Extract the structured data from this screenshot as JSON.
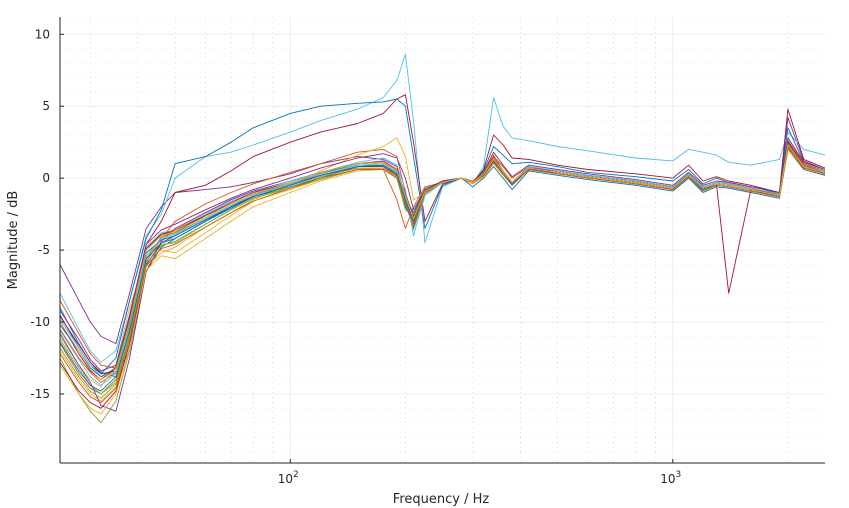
{
  "chart_data": {
    "type": "line",
    "title": "",
    "xlabel": "Frequency / Hz",
    "ylabel": "Magnitude / dB",
    "xscale": "log",
    "xlim": [
      25,
      2500
    ],
    "ylim": [
      -19.8,
      11.2
    ],
    "grid": true,
    "minor_grid": true,
    "legend": "none",
    "xticks": [
      {
        "value": 100,
        "base": "10",
        "exp": "2"
      },
      {
        "value": 1000,
        "base": "10",
        "exp": "3"
      }
    ],
    "yticks": [
      {
        "value": 10,
        "label": "10"
      },
      {
        "value": 5,
        "label": "5"
      },
      {
        "value": 0,
        "label": "0"
      },
      {
        "value": -5,
        "label": "-5"
      },
      {
        "value": -10,
        "label": "-10"
      },
      {
        "value": -15,
        "label": "-15"
      }
    ],
    "x": [
      25,
      28,
      30,
      32,
      35,
      38,
      42,
      46,
      50,
      60,
      70,
      80,
      100,
      120,
      150,
      175,
      190,
      200,
      210,
      225,
      250,
      280,
      300,
      320,
      340,
      360,
      380,
      420,
      500,
      600,
      800,
      1000,
      1100,
      1200,
      1300,
      1400,
      1600,
      1900,
      2000,
      2200,
      2500
    ],
    "series": [
      {
        "color": "#0072BD",
        "values": [
          -9.0,
          -11.5,
          -12.8,
          -13.5,
          -13.8,
          -12.0,
          -6.5,
          -4.8,
          -4.2,
          -3.0,
          -2.0,
          -1.3,
          -0.6,
          0.0,
          0.8,
          0.9,
          0.3,
          -2.0,
          -3.0,
          -0.8,
          -0.2,
          0.0,
          -0.3,
          0.2,
          1.2,
          0.3,
          -0.5,
          0.7,
          0.5,
          0.2,
          -0.2,
          -0.6,
          0.2,
          -0.8,
          -0.4,
          -0.5,
          -0.8,
          -1.0,
          2.5,
          1.0,
          0.5
        ]
      },
      {
        "color": "#D95319",
        "values": [
          -10.5,
          -12.5,
          -13.5,
          -14.2,
          -13.5,
          -10.0,
          -5.0,
          -4.0,
          -3.8,
          -2.6,
          -1.8,
          -1.1,
          -0.4,
          0.2,
          0.7,
          0.6,
          -1.5,
          -3.5,
          -2.0,
          -0.6,
          -0.3,
          0.0,
          -0.2,
          0.4,
          1.6,
          0.5,
          -0.3,
          0.8,
          0.4,
          0.1,
          -0.3,
          -0.7,
          0.3,
          -0.6,
          -0.3,
          -0.4,
          -0.7,
          -1.2,
          2.2,
          0.8,
          0.3
        ]
      },
      {
        "color": "#EDB120",
        "values": [
          -11.0,
          -13.0,
          -14.0,
          -14.5,
          -13.0,
          -9.0,
          -5.5,
          -5.0,
          -5.2,
          -3.8,
          -2.6,
          -1.6,
          -0.8,
          -0.1,
          0.6,
          0.7,
          0.2,
          -1.8,
          -3.2,
          -0.9,
          -0.3,
          0.0,
          -0.4,
          0.1,
          1.0,
          0.2,
          -0.4,
          0.6,
          0.3,
          0.0,
          -0.4,
          -0.8,
          0.1,
          -0.9,
          -0.5,
          -0.6,
          -0.9,
          -1.3,
          2.0,
          0.6,
          0.2
        ]
      },
      {
        "color": "#7E2F8E",
        "values": [
          -6.0,
          -8.5,
          -10.0,
          -11.0,
          -11.5,
          -8.0,
          -3.5,
          -2.0,
          -1.0,
          -0.8,
          -0.6,
          -0.3,
          0.3,
          1.0,
          1.5,
          1.3,
          0.8,
          -1.5,
          -3.0,
          -0.9,
          -0.2,
          0.0,
          -0.3,
          0.3,
          1.3,
          0.4,
          -0.4,
          0.7,
          0.5,
          0.2,
          -0.2,
          -0.6,
          0.3,
          -0.7,
          -0.4,
          -0.5,
          -0.8,
          -1.1,
          4.2,
          1.2,
          0.6
        ]
      },
      {
        "color": "#77AC30",
        "values": [
          -12.5,
          -15.0,
          -16.2,
          -17.0,
          -15.5,
          -12.0,
          -6.0,
          -4.6,
          -4.5,
          -3.2,
          -2.2,
          -1.4,
          -0.7,
          -0.1,
          0.6,
          0.6,
          0.0,
          -2.2,
          -2.6,
          -0.7,
          -0.3,
          0.0,
          -0.3,
          0.2,
          1.1,
          0.3,
          -0.5,
          0.6,
          0.4,
          0.1,
          -0.3,
          -0.7,
          0.2,
          -0.8,
          -0.4,
          -0.5,
          -0.8,
          -1.2,
          2.4,
          0.9,
          0.4
        ]
      },
      {
        "color": "#4DBEEE",
        "values": [
          -8.0,
          -10.5,
          -12.0,
          -12.8,
          -12.0,
          -8.5,
          -4.0,
          -2.5,
          0.0,
          1.5,
          1.8,
          2.3,
          3.2,
          4.0,
          4.8,
          5.6,
          6.8,
          8.6,
          4.0,
          -4.5,
          -0.6,
          0.0,
          -0.4,
          0.8,
          5.6,
          3.6,
          2.8,
          2.6,
          2.2,
          1.9,
          1.4,
          1.2,
          2.0,
          1.8,
          1.6,
          1.1,
          0.9,
          1.3,
          3.2,
          2.0,
          1.6
        ]
      },
      {
        "color": "#A2142F",
        "values": [
          -10.0,
          -12.2,
          -13.4,
          -14.0,
          -13.2,
          -9.5,
          -4.6,
          -3.0,
          -1.0,
          -0.5,
          0.5,
          1.5,
          2.5,
          3.2,
          3.8,
          4.5,
          5.5,
          5.8,
          2.5,
          -3.0,
          -0.4,
          0.0,
          -0.3,
          0.6,
          3.0,
          2.3,
          1.4,
          1.3,
          0.9,
          0.6,
          0.3,
          0.0,
          0.9,
          -0.2,
          0.1,
          -0.2,
          -0.5,
          -1.0,
          4.8,
          1.3,
          0.7
        ]
      },
      {
        "color": "#0072BD",
        "values": [
          -9.5,
          -11.8,
          -13.0,
          -13.6,
          -12.5,
          -8.5,
          -4.2,
          -2.2,
          1.0,
          1.5,
          2.5,
          3.5,
          4.5,
          5.0,
          5.2,
          5.3,
          5.5,
          5.0,
          1.5,
          -3.5,
          -0.5,
          0.0,
          -0.4,
          0.5,
          2.2,
          1.6,
          1.0,
          1.1,
          0.8,
          0.4,
          0.1,
          -0.2,
          0.6,
          -0.4,
          0.0,
          -0.3,
          -0.6,
          -1.0,
          3.5,
          1.1,
          0.6
        ]
      },
      {
        "color": "#D95319",
        "values": [
          -11.5,
          -13.6,
          -14.6,
          -15.0,
          -14.0,
          -10.5,
          -5.8,
          -4.2,
          -3.0,
          -1.8,
          -1.0,
          -0.4,
          0.4,
          1.0,
          1.8,
          2.0,
          1.5,
          -1.0,
          -2.8,
          -0.8,
          -0.2,
          0.0,
          -0.3,
          0.3,
          1.5,
          0.8,
          0.0,
          0.8,
          0.5,
          0.2,
          -0.2,
          -0.6,
          0.3,
          -0.6,
          -0.3,
          -0.4,
          -0.7,
          -1.1,
          2.8,
          1.0,
          0.5
        ]
      },
      {
        "color": "#EDB120",
        "values": [
          -12.0,
          -14.0,
          -15.0,
          -15.5,
          -14.5,
          -11.0,
          -6.2,
          -5.2,
          -4.8,
          -3.4,
          -2.4,
          -1.5,
          -0.5,
          0.5,
          1.6,
          2.2,
          2.8,
          1.5,
          -1.5,
          -1.0,
          -0.3,
          0.0,
          -0.4,
          0.1,
          1.2,
          0.4,
          -0.3,
          0.7,
          0.3,
          0.0,
          -0.4,
          -0.8,
          0.1,
          -0.8,
          -0.5,
          -0.6,
          -0.9,
          -1.2,
          2.1,
          0.7,
          0.3
        ]
      },
      {
        "color": "#7E2F8E",
        "values": [
          -10.8,
          -13.0,
          -14.2,
          -15.8,
          -16.2,
          -12.5,
          -6.5,
          -4.4,
          -3.5,
          -2.4,
          -1.5,
          -0.9,
          -0.2,
          0.4,
          1.0,
          1.2,
          0.6,
          -1.8,
          -3.4,
          -1.0,
          -0.3,
          0.0,
          -0.3,
          0.2,
          1.4,
          0.5,
          -0.4,
          0.7,
          0.4,
          0.1,
          -0.3,
          -0.7,
          0.2,
          -0.7,
          -0.4,
          -0.5,
          -0.8,
          -1.2,
          2.3,
          0.8,
          0.4
        ]
      },
      {
        "color": "#77AC30",
        "values": [
          -11.2,
          -13.2,
          -14.4,
          -15.0,
          -14.2,
          -10.8,
          -5.6,
          -4.1,
          -3.8,
          -2.8,
          -1.9,
          -1.2,
          -0.4,
          0.3,
          0.9,
          0.9,
          0.4,
          -1.2,
          -3.6,
          -1.1,
          -0.3,
          0.0,
          -0.3,
          0.3,
          1.3,
          0.4,
          -0.4,
          0.7,
          0.4,
          0.1,
          -0.3,
          -0.7,
          0.2,
          -0.7,
          -0.4,
          -0.5,
          -0.8,
          -1.2,
          2.2,
          0.8,
          0.4
        ]
      },
      {
        "color": "#4DBEEE",
        "values": [
          -9.8,
          -11.8,
          -13.0,
          -13.8,
          -13.5,
          -10.0,
          -4.8,
          -3.8,
          -3.6,
          -2.5,
          -1.6,
          -1.0,
          -0.2,
          0.4,
          1.1,
          1.4,
          0.9,
          -0.8,
          -4.0,
          -1.2,
          -0.3,
          0.0,
          -0.3,
          0.3,
          1.4,
          0.5,
          -0.3,
          0.8,
          0.5,
          0.2,
          -0.2,
          -0.6,
          0.3,
          -0.6,
          -0.3,
          -0.4,
          -0.7,
          -1.1,
          2.4,
          0.9,
          0.5
        ]
      },
      {
        "color": "#A2142F",
        "values": [
          -12.8,
          -14.8,
          -15.6,
          -16.0,
          -14.8,
          -11.5,
          -6.0,
          -4.5,
          -4.0,
          -2.9,
          -2.0,
          -1.3,
          -0.5,
          0.2,
          0.8,
          0.8,
          0.2,
          -1.6,
          -3.0,
          -0.9,
          -0.3,
          0.0,
          -0.3,
          0.2,
          1.2,
          0.4,
          -0.4,
          0.6,
          0.4,
          0.1,
          -0.3,
          -0.7,
          0.2,
          -0.8,
          -0.4,
          -0.5,
          -0.8,
          -1.3,
          2.6,
          0.9,
          0.4
        ]
      },
      {
        "color": "#0072BD",
        "values": [
          -10.2,
          -12.0,
          -13.2,
          -13.8,
          -13.2,
          -9.8,
          -5.2,
          -4.3,
          -4.0,
          -2.9,
          -2.0,
          -1.2,
          -0.4,
          0.3,
          1.0,
          1.1,
          0.5,
          -1.4,
          -2.4,
          -0.8,
          -0.3,
          0.0,
          -0.6,
          0.0,
          0.8,
          0.0,
          -0.8,
          0.5,
          0.2,
          -0.1,
          -0.5,
          -0.9,
          0.0,
          -1.0,
          -0.6,
          -0.7,
          -1.0,
          -1.4,
          2.0,
          0.6,
          0.2
        ]
      },
      {
        "color": "#D95319",
        "values": [
          -8.5,
          -10.8,
          -12.2,
          -13.0,
          -13.2,
          -10.2,
          -5.0,
          -3.9,
          -3.6,
          -2.6,
          -1.8,
          -1.1,
          -0.3,
          0.4,
          1.0,
          1.1,
          0.6,
          -1.2,
          -2.6,
          -0.9,
          -0.3,
          0.0,
          -0.3,
          0.3,
          1.4,
          0.5,
          -0.3,
          0.7,
          0.4,
          0.1,
          -0.3,
          -0.7,
          0.2,
          -0.7,
          -0.4,
          -0.5,
          -0.8,
          -1.2,
          2.4,
          0.9,
          0.4
        ]
      },
      {
        "color": "#EDB120",
        "values": [
          -13.0,
          -15.0,
          -16.0,
          -16.4,
          -15.0,
          -11.8,
          -6.4,
          -5.4,
          -5.6,
          -4.2,
          -3.0,
          -2.0,
          -1.0,
          -0.2,
          0.5,
          0.6,
          0.1,
          -1.5,
          -2.8,
          -0.9,
          -0.3,
          0.0,
          -0.4,
          0.1,
          1.0,
          0.2,
          -0.5,
          0.6,
          0.3,
          0.0,
          -0.4,
          -0.8,
          0.1,
          -0.9,
          -0.5,
          -0.6,
          -0.9,
          -1.3,
          2.0,
          0.7,
          0.3
        ]
      },
      {
        "color": "#7E2F8E",
        "values": [
          -9.2,
          -11.2,
          -12.6,
          -13.4,
          -13.0,
          -9.6,
          -4.6,
          -3.6,
          -3.2,
          -2.2,
          -1.4,
          -0.8,
          0.0,
          0.7,
          1.4,
          1.7,
          1.4,
          0.0,
          -2.2,
          -0.8,
          -0.2,
          0.0,
          -0.3,
          0.4,
          1.8,
          0.9,
          0.1,
          0.9,
          0.6,
          0.3,
          -0.1,
          -0.5,
          0.4,
          -0.5,
          -0.2,
          -0.3,
          -0.6,
          -1.0,
          2.8,
          1.1,
          0.6
        ]
      },
      {
        "color": "#77AC30",
        "values": [
          -11.8,
          -13.8,
          -14.8,
          -15.3,
          -14.3,
          -11.0,
          -5.9,
          -4.7,
          -4.4,
          -3.2,
          -2.2,
          -1.4,
          -0.6,
          0.1,
          0.7,
          0.7,
          0.1,
          -1.7,
          -3.1,
          -1.0,
          -0.3,
          0.0,
          -0.3,
          0.2,
          1.1,
          0.3,
          -0.5,
          0.6,
          0.3,
          0.0,
          -0.4,
          -0.8,
          0.1,
          -0.8,
          -0.5,
          -0.6,
          -0.9,
          -1.3,
          2.1,
          0.7,
          0.3
        ]
      },
      {
        "color": "#4DBEEE",
        "values": [
          -10.6,
          -12.6,
          -13.8,
          -14.4,
          -13.6,
          -10.4,
          -5.4,
          -4.2,
          -3.9,
          -2.8,
          -1.9,
          -1.2,
          -0.4,
          0.3,
          0.9,
          1.0,
          0.4,
          -1.3,
          -2.9,
          -0.9,
          -0.3,
          0.0,
          -0.3,
          0.3,
          1.3,
          0.4,
          -0.4,
          0.7,
          0.4,
          0.1,
          -0.3,
          -0.7,
          0.2,
          -0.7,
          -0.4,
          -0.5,
          -0.8,
          -1.2,
          2.3,
          0.8,
          0.4
        ]
      },
      {
        "color": "#A2142F",
        "values": [
          -9.6,
          -11.6,
          -12.8,
          -13.6,
          -13.4,
          -10.0,
          -4.9,
          -3.9,
          -3.7,
          -2.6,
          -1.7,
          -1.0,
          -0.3,
          0.4,
          1.0,
          1.1,
          0.5,
          -1.1,
          -2.7,
          -0.9,
          -0.3,
          0.0,
          -0.3,
          0.3,
          1.3,
          0.5,
          -0.3,
          0.7,
          0.4,
          0.1,
          -0.3,
          -0.7,
          0.2,
          -0.7,
          -0.4,
          -8.0,
          -0.8,
          -1.2,
          2.3,
          0.8,
          0.4
        ]
      },
      {
        "color": "#0072BD",
        "values": [
          -11.4,
          -13.4,
          -14.4,
          -14.8,
          -13.8,
          -10.6,
          -5.6,
          -4.5,
          -4.2,
          -3.0,
          -2.1,
          -1.3,
          -0.5,
          0.2,
          0.8,
          0.9,
          0.3,
          -1.5,
          -3.0,
          -0.9,
          -0.3,
          0.0,
          -0.3,
          0.2,
          1.2,
          0.3,
          -0.4,
          0.6,
          0.4,
          0.1,
          -0.3,
          -0.7,
          0.2,
          -0.8,
          -0.4,
          -0.5,
          -0.8,
          -1.2,
          2.2,
          0.8,
          0.4
        ]
      },
      {
        "color": "#D95319",
        "values": [
          -12.2,
          -14.2,
          -15.2,
          -15.6,
          -14.6,
          -11.2,
          -6.1,
          -4.9,
          -4.6,
          -3.4,
          -2.4,
          -1.6,
          -0.7,
          0.0,
          0.6,
          0.6,
          0.0,
          -1.8,
          -3.2,
          -1.0,
          -0.3,
          0.0,
          -0.3,
          0.2,
          1.1,
          0.3,
          -0.5,
          0.6,
          0.3,
          0.0,
          -0.4,
          -0.8,
          0.1,
          -0.9,
          -0.5,
          -0.6,
          -0.9,
          -1.3,
          2.1,
          0.7,
          0.3
        ]
      },
      {
        "color": "#EDB120",
        "values": [
          -10.0,
          -12.0,
          -13.3,
          -14.0,
          -13.4,
          -10.0,
          -5.0,
          -4.0,
          -3.7,
          -2.7,
          -1.8,
          -1.1,
          -0.3,
          0.4,
          1.0,
          1.1,
          0.5,
          -1.2,
          -2.8,
          -0.9,
          -0.3,
          0.0,
          -0.3,
          0.3,
          1.3,
          0.5,
          -0.3,
          0.7,
          0.4,
          0.1,
          -0.3,
          -0.7,
          0.2,
          -0.7,
          -0.4,
          -0.5,
          -0.8,
          -1.2,
          2.3,
          0.8,
          0.4
        ]
      }
    ]
  }
}
